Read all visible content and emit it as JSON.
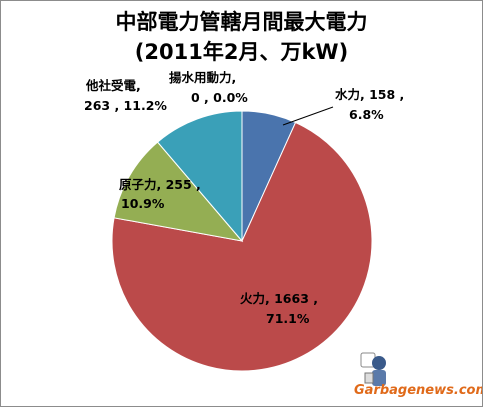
{
  "chart_data": {
    "type": "pie",
    "title": "中部電力管轄月間最大電力",
    "subtitle": "(2011年2月、万kW)",
    "slices": [
      {
        "name": "水力",
        "value": 158,
        "percent": "6.8%",
        "color": "#4a74ad"
      },
      {
        "name": "火力",
        "value": 1663,
        "percent": "71.1%",
        "color": "#bb4a4a"
      },
      {
        "name": "原子力",
        "value": 255,
        "percent": "10.9%",
        "color": "#94ae53"
      },
      {
        "name": "他社受電",
        "value": 263,
        "percent": "11.2%",
        "color": "#3aa0b8"
      },
      {
        "name": "揚水用動力",
        "value": 0,
        "percent": "0.0%",
        "color": "#7a5fa0"
      }
    ],
    "labels": [
      {
        "line1": "水力, 158 ,",
        "line2": "6.8%"
      },
      {
        "line1": "火力, 1663 ,",
        "line2": "71.1%"
      },
      {
        "line1": "原子力, 255 ,",
        "line2": "10.9%"
      },
      {
        "line1": "他社受電,",
        "line2": "263 , 11.2%"
      },
      {
        "line1": "揚水用動力,",
        "line2": "0 , 0.0%"
      }
    ]
  },
  "watermark": {
    "text": "Garbagenews.com"
  }
}
